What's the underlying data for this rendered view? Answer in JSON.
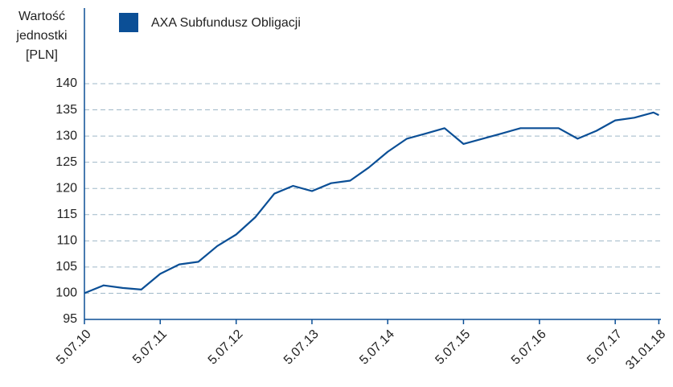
{
  "chart_data": {
    "type": "line",
    "y_label": [
      "Wartość",
      "jednostki",
      "[PLN]"
    ],
    "x": [
      "5.07.10",
      "5.10.10",
      "5.01.11",
      "5.04.11",
      "5.07.11",
      "5.10.11",
      "5.01.12",
      "5.04.12",
      "5.07.12",
      "5.10.12",
      "5.01.13",
      "5.04.13",
      "5.07.13",
      "5.10.13",
      "5.01.14",
      "5.04.14",
      "5.07.14",
      "5.10.14",
      "5.01.15",
      "5.04.15",
      "5.07.15",
      "5.10.15",
      "5.01.16",
      "5.04.16",
      "5.07.16",
      "5.10.16",
      "5.01.17",
      "5.04.17",
      "5.07.17",
      "5.10.17",
      "5.01.18",
      "31.01.18"
    ],
    "series": [
      {
        "name": "AXA Subfundusz Obligacji",
        "color": "#0b4f96",
        "values": [
          100,
          101.5,
          101,
          100.7,
          103.7,
          105.5,
          106,
          109,
          111.2,
          114.5,
          119,
          120.5,
          119.5,
          121,
          121.5,
          124,
          127,
          129.5,
          130.5,
          131.5,
          128.5,
          129.5,
          130.5,
          131.5,
          131.5,
          131.5,
          129.5,
          131,
          133,
          133.5,
          134.5,
          134
        ]
      }
    ],
    "xticks": [
      "5.07.10",
      "5.07.11",
      "5.07.12",
      "5.07.13",
      "5.07.14",
      "5.07.15",
      "5.07.16",
      "5.07.17",
      "31.01.18"
    ],
    "ylim": [
      95,
      140
    ],
    "yticks": [
      95,
      100,
      105,
      110,
      115,
      120,
      125,
      130,
      135,
      140
    ],
    "grid": true,
    "legend": "top-left"
  }
}
